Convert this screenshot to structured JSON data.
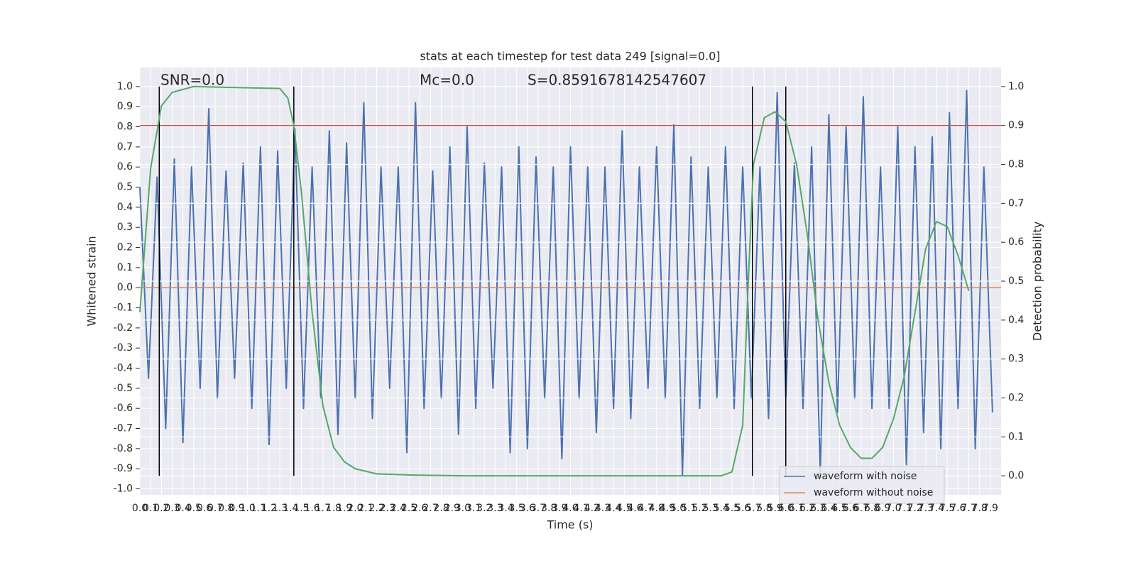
{
  "chart_data": {
    "type": "line",
    "title": "stats at each timestep for test data 249 [signal=0.0]",
    "annotations": [
      "SNR=0.0",
      "Mc=0.0",
      "S=0.8591678142547607"
    ],
    "xlabel": "Time (s)",
    "ylabel": "Whitened strain",
    "y2label": "Detection probability",
    "xlim": [
      0,
      8
    ],
    "ylim": [
      -1.03,
      1.095
    ],
    "y2lim": [
      -0.049,
      1.049
    ],
    "xticks": [
      {
        "value": 0,
        "label": "0.0"
      },
      0.1,
      0.2,
      0.3,
      0.4,
      0.5,
      0.6,
      0.7,
      0.8,
      0.9,
      {
        "value": 1,
        "label": "1.0"
      },
      1.1,
      1.2,
      1.3,
      1.4,
      1.5,
      1.6,
      1.7,
      1.8,
      1.9,
      {
        "value": 2,
        "label": "2.0"
      },
      2.1,
      2.2,
      2.3,
      2.4,
      2.5,
      2.6,
      2.7,
      2.8,
      2.9,
      {
        "value": 3,
        "label": "3.0"
      },
      3.1,
      3.2,
      3.3,
      3.4,
      3.5,
      3.6,
      3.7,
      3.8,
      3.9,
      {
        "value": 4,
        "label": "4.0"
      },
      4.1,
      4.2,
      4.3,
      4.4,
      4.5,
      4.6,
      4.7,
      4.8,
      4.9,
      {
        "value": 5,
        "label": "5.0"
      },
      5.1,
      5.2,
      5.3,
      5.4,
      5.5,
      5.6,
      5.7,
      5.8,
      5.9,
      {
        "value": 6,
        "label": "6.0"
      },
      6.1,
      6.2,
      6.3,
      6.4,
      6.5,
      6.6,
      6.7,
      6.8,
      6.9,
      {
        "value": 7,
        "label": "7.0"
      },
      7.1,
      7.2,
      7.3,
      7.4,
      7.5,
      7.6,
      7.7,
      7.8,
      7.9
    ],
    "yticks": [
      {
        "value": 1,
        "label": "1.0"
      },
      0.9,
      0.8,
      0.7,
      0.6,
      0.5,
      0.4,
      0.3,
      0.2,
      0.1,
      {
        "value": 0,
        "label": "0.0"
      },
      -0.1,
      -0.2,
      -0.3,
      -0.4,
      -0.5,
      -0.6,
      -0.7,
      -0.8,
      -0.9,
      {
        "value": -1,
        "label": "-1.0"
      }
    ],
    "y2ticks": [
      {
        "value": 1,
        "label": "1.0"
      },
      0.9,
      0.8,
      0.7,
      0.6,
      0.5,
      0.4,
      0.3,
      0.2,
      0.1,
      {
        "value": 0,
        "label": "0.0"
      }
    ],
    "grid": true,
    "legend": "lower right",
    "series": [
      {
        "name": "waveform with noise",
        "color": "#4c72b0",
        "x": [
          0,
          0.08,
          0.16,
          0.24,
          0.32,
          0.4,
          0.48,
          0.56,
          0.64,
          0.72,
          0.8,
          0.88,
          0.96,
          1.04,
          1.12,
          1.2,
          1.28,
          1.36,
          1.44,
          1.52,
          1.6,
          1.68,
          1.76,
          1.84,
          1.92,
          2,
          2.08,
          2.16,
          2.24,
          2.32,
          2.4,
          2.48,
          2.56,
          2.64,
          2.72,
          2.8,
          2.88,
          2.96,
          3.04,
          3.12,
          3.2,
          3.28,
          3.36,
          3.44,
          3.52,
          3.6,
          3.68,
          3.76,
          3.84,
          3.92,
          4,
          4.08,
          4.16,
          4.24,
          4.32,
          4.4,
          4.48,
          4.56,
          4.64,
          4.72,
          4.8,
          4.88,
          4.96,
          5.04,
          5.12,
          5.2,
          5.28,
          5.36,
          5.44,
          5.52,
          5.6,
          5.68,
          5.76,
          5.84,
          5.92,
          6,
          6.08,
          6.16,
          6.24,
          6.32,
          6.4,
          6.48,
          6.56,
          6.64,
          6.72,
          6.8,
          6.88,
          6.96,
          7.04,
          7.12,
          7.2,
          7.28,
          7.36,
          7.44,
          7.52,
          7.6,
          7.68,
          7.76,
          7.84,
          7.92
        ],
        "values": [
          0.5,
          -0.45,
          0.55,
          -0.7,
          0.64,
          -0.77,
          0.6,
          -0.5,
          0.89,
          -0.55,
          0.58,
          -0.45,
          0.62,
          -0.6,
          0.7,
          -0.78,
          0.68,
          -0.5,
          0.79,
          -0.6,
          0.6,
          -0.55,
          0.78,
          -0.73,
          0.72,
          -0.55,
          0.92,
          -0.65,
          0.6,
          -0.5,
          0.6,
          -0.82,
          0.92,
          -0.6,
          0.58,
          -0.55,
          0.7,
          -0.73,
          0.8,
          -0.6,
          0.62,
          -0.5,
          0.6,
          -0.82,
          0.7,
          -0.8,
          0.65,
          -0.55,
          0.6,
          -0.85,
          0.7,
          -0.55,
          0.6,
          -0.72,
          0.6,
          -0.6,
          0.78,
          -0.65,
          0.6,
          -0.5,
          0.7,
          -0.55,
          0.81,
          -0.93,
          0.65,
          -0.6,
          0.6,
          -0.55,
          0.7,
          -0.6,
          0.6,
          -0.55,
          0.6,
          -0.65,
          0.97,
          -0.55,
          0.62,
          -0.6,
          0.7,
          -0.93,
          0.86,
          -0.62,
          0.8,
          -0.55,
          0.95,
          -0.6,
          0.6,
          -0.6,
          0.8,
          -0.88,
          0.7,
          -0.72,
          0.75,
          -0.8,
          0.87,
          -0.6,
          0.98,
          -0.8,
          0.6,
          -0.62
        ]
      },
      {
        "name": "waveform without noise",
        "color": "#dd8452",
        "x": [
          0,
          8
        ],
        "values": [
          0,
          0
        ]
      }
    ],
    "probability": {
      "color": "#55a868",
      "axis": "y2",
      "x": [
        0,
        0.1,
        0.2,
        0.3,
        0.5,
        1.3,
        1.375,
        1.43,
        1.5,
        1.6,
        1.7,
        1.8,
        1.9,
        2,
        2.2,
        2.5,
        3,
        5.4,
        5.5,
        5.6,
        5.65,
        5.7,
        5.8,
        5.9,
        6,
        6.1,
        6.2,
        6.3,
        6.4,
        6.5,
        6.6,
        6.7,
        6.8,
        6.9,
        7,
        7.1,
        7.2,
        7.3,
        7.4,
        7.5,
        7.6,
        7.7
      ],
      "values": [
        0.42,
        0.79,
        0.95,
        0.985,
        1,
        0.995,
        0.97,
        0.9,
        0.73,
        0.42,
        0.18,
        0.073,
        0.036,
        0.018,
        0.005,
        0.002,
        0,
        0,
        0.01,
        0.13,
        0.49,
        0.8,
        0.92,
        0.935,
        0.91,
        0.8,
        0.62,
        0.4,
        0.24,
        0.13,
        0.073,
        0.045,
        0.045,
        0.073,
        0.146,
        0.255,
        0.42,
        0.584,
        0.653,
        0.64,
        0.566,
        0.475
      ]
    },
    "threshold": {
      "value": 0.9,
      "axis": "y2",
      "color": "#c44e52"
    },
    "vlines": {
      "x": [
        0.18,
        1.43,
        5.69,
        6.0
      ],
      "span": [
        0,
        1
      ],
      "axis": "y2",
      "color": "#000000"
    }
  }
}
